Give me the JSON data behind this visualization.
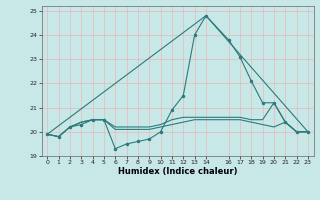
{
  "xlabel": "Humidex (Indice chaleur)",
  "xlim": [
    -0.5,
    23.5
  ],
  "ylim": [
    19,
    25.2
  ],
  "yticks": [
    19,
    20,
    21,
    22,
    23,
    24,
    25
  ],
  "xticks": [
    0,
    1,
    2,
    3,
    4,
    5,
    6,
    7,
    8,
    9,
    10,
    11,
    12,
    13,
    14,
    16,
    17,
    18,
    19,
    20,
    21,
    22,
    23
  ],
  "bg_color": "#c8e8e8",
  "grid_color": "#e8b8b8",
  "line_color": "#2a7b7b",
  "series_main": {
    "x": [
      0,
      1,
      2,
      3,
      4,
      5,
      6,
      7,
      8,
      9,
      10,
      11,
      12,
      13,
      14,
      16,
      17,
      18,
      19,
      20,
      21,
      22,
      23
    ],
    "y": [
      19.9,
      19.8,
      20.2,
      20.3,
      20.5,
      20.5,
      19.3,
      19.5,
      19.6,
      19.7,
      20.0,
      20.9,
      21.5,
      24.0,
      24.8,
      23.8,
      23.1,
      22.1,
      21.2,
      21.2,
      20.4,
      20.0,
      20.0
    ]
  },
  "series_flat1": {
    "x": [
      0,
      1,
      2,
      3,
      4,
      5,
      6,
      7,
      8,
      9,
      10,
      11,
      12,
      13,
      14,
      16,
      17,
      18,
      19,
      20,
      21,
      22,
      23
    ],
    "y": [
      19.9,
      19.8,
      20.2,
      20.4,
      20.5,
      20.5,
      20.1,
      20.1,
      20.1,
      20.1,
      20.2,
      20.3,
      20.4,
      20.5,
      20.5,
      20.5,
      20.5,
      20.4,
      20.3,
      20.2,
      20.4,
      20.0,
      20.0
    ]
  },
  "series_flat2": {
    "x": [
      0,
      1,
      2,
      3,
      4,
      5,
      6,
      7,
      8,
      9,
      10,
      11,
      12,
      13,
      14,
      16,
      17,
      18,
      19,
      20,
      21,
      22,
      23
    ],
    "y": [
      19.9,
      19.8,
      20.2,
      20.4,
      20.5,
      20.5,
      20.2,
      20.2,
      20.2,
      20.2,
      20.3,
      20.5,
      20.6,
      20.6,
      20.6,
      20.6,
      20.6,
      20.5,
      20.5,
      21.2,
      20.4,
      20.0,
      20.0
    ]
  },
  "series_diagonal": {
    "x": [
      0,
      14,
      23
    ],
    "y": [
      19.9,
      24.8,
      20.0
    ]
  }
}
